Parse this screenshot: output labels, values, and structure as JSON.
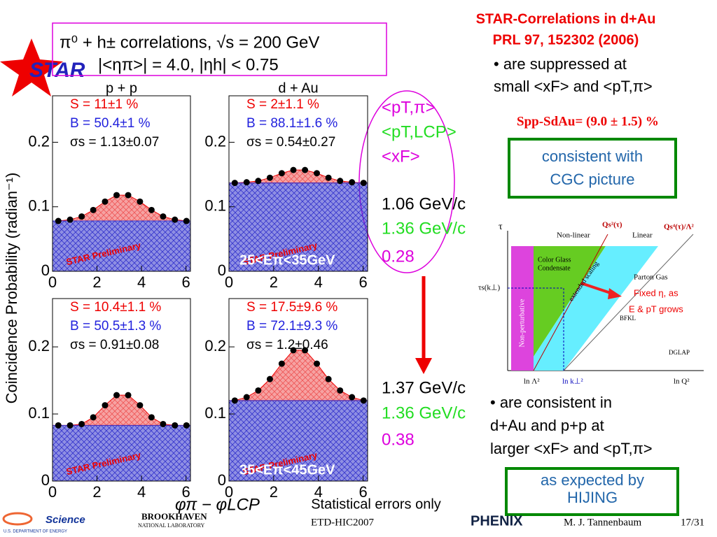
{
  "chart_data": [
    {
      "type": "scatter",
      "title": "p + p",
      "x": [
        0.26,
        0.79,
        1.31,
        1.83,
        2.36,
        2.88,
        3.4,
        3.93,
        4.45,
        4.97,
        5.5,
        6.02
      ],
      "values": [
        0.078,
        0.08,
        0.085,
        0.095,
        0.108,
        0.118,
        0.118,
        0.108,
        0.095,
        0.085,
        0.08,
        0.078
      ],
      "xlim": [
        0,
        6.2
      ],
      "xticks": [
        0,
        2,
        4,
        6
      ],
      "ylim": [
        0,
        0.272
      ],
      "yticks": [
        0,
        0.1,
        0.2
      ],
      "annotations": [
        "S = 11±1 %",
        "B = 50.4±1 %",
        "σs = 1.13±0.07",
        "STAR Preliminary"
      ]
    },
    {
      "type": "scatter",
      "title": "d + Au",
      "x": [
        0.26,
        0.79,
        1.31,
        1.83,
        2.36,
        2.88,
        3.4,
        3.93,
        4.45,
        4.97,
        5.5,
        6.02
      ],
      "values": [
        0.137,
        0.138,
        0.14,
        0.145,
        0.152,
        0.157,
        0.157,
        0.152,
        0.145,
        0.14,
        0.138,
        0.137
      ],
      "xlim": [
        0,
        6.2
      ],
      "xticks": [
        0,
        2,
        4,
        6
      ],
      "ylim": [
        0,
        0.272
      ],
      "yticks": [
        0,
        0.1,
        0.2
      ],
      "annotations": [
        "S = 2±1.1 %",
        "B = 88.1±1.6 %",
        "σs = 0.54±0.27",
        "STAR Preliminary",
        "25<Eπ<35GeV"
      ]
    },
    {
      "type": "scatter",
      "x": [
        0.26,
        0.79,
        1.31,
        1.83,
        2.36,
        2.88,
        3.4,
        3.93,
        4.45,
        4.97,
        5.5,
        6.02
      ],
      "values": [
        0.083,
        0.083,
        0.085,
        0.095,
        0.113,
        0.128,
        0.128,
        0.113,
        0.095,
        0.085,
        0.083,
        0.083
      ],
      "xlim": [
        0,
        6.2
      ],
      "xticks": [
        0,
        2,
        4,
        6
      ],
      "ylim": [
        0,
        0.272
      ],
      "yticks": [
        0,
        0.1,
        0.2
      ],
      "annotations": [
        "S = 10.4±1.1 %",
        "B = 50.5±1.3 %",
        "σs = 0.91±0.08",
        "STAR Preliminary"
      ]
    },
    {
      "type": "scatter",
      "x": [
        0.26,
        0.79,
        1.31,
        1.83,
        2.36,
        2.88,
        3.4,
        3.93,
        4.45,
        4.97,
        5.5,
        6.02
      ],
      "values": [
        0.12,
        0.125,
        0.135,
        0.152,
        0.175,
        0.195,
        0.195,
        0.175,
        0.152,
        0.135,
        0.125,
        0.12
      ],
      "xlim": [
        0,
        6.2
      ],
      "xticks": [
        0,
        2,
        4,
        6
      ],
      "ylim": [
        0,
        0.272
      ],
      "yticks": [
        0,
        0.1,
        0.2
      ],
      "annotations": [
        "S = 17.5±9.6 %",
        "B = 72.1±9.3 %",
        "σs = 1.2±0.46",
        "STAR Preliminary",
        "35<Eπ<45GeV"
      ]
    }
  ],
  "slide": {
    "logo": "STAR",
    "header": [
      "π⁰ + h± correlations, √s = 200 GeV",
      "|<ηπ>| = 4.0, |ηh| < 0.75"
    ],
    "ylabel": "Coincidence Probability (radian⁻¹)",
    "xlabel": "φπ − φLCP",
    "legend": [
      "<pT,π>",
      "<pT,LCP>",
      "<xF>"
    ],
    "top_values": [
      "1.06 GeV/c",
      "1.36 GeV/c",
      "0.28"
    ],
    "bottom_values": [
      "1.37 GeV/c",
      "1.36 GeV/c",
      "0.38"
    ],
    "title": [
      "STAR-Correlations in d+Au",
      "PRL 97, 152302 (2006)"
    ],
    "bullet1": [
      "• are suppressed at",
      "small <xF> and <pT,π>"
    ],
    "difference": "Spp-SdAu= (9.0 ± 1.5) %",
    "box1": [
      "consistent with",
      "CGC picture"
    ],
    "diagram": [
      "τ",
      "Non-linear",
      "Linear",
      "Qs²(τ)",
      "Qs⁴(τ)/Λ²",
      "Color Glass",
      "Condensate",
      "Parton Gas",
      "extended scaling",
      "Non-perturbative",
      "τs(k⊥)",
      "BFKL",
      "DGLAP",
      "ln Λ²",
      "ln k⊥²",
      "ln Q²",
      "Fixed η, as",
      "E & pT grows"
    ],
    "bullet2": [
      "• are consistent in",
      "d+Au and p+p at",
      "larger <xF> and <pT,π>"
    ],
    "box2": [
      "as expected by",
      "HIJING"
    ],
    "note": "Statistical errors only",
    "footer": [
      "Science",
      "U.S. DEPARTMENT OF ENERGY",
      "BROOKHAVEN",
      "NATIONAL LABORATORY",
      "ETD-HIC2007",
      "PHENIX",
      "M. J. Tannenbaum",
      "17/31"
    ]
  }
}
